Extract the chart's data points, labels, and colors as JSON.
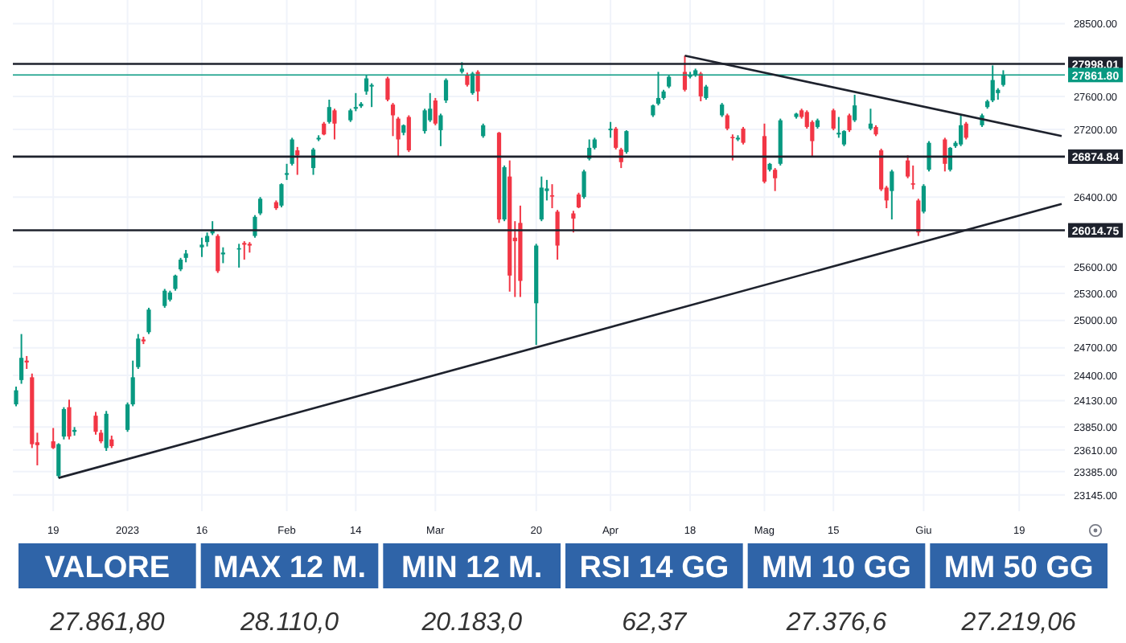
{
  "chart_data": [
    {
      "type": "candlestick",
      "x": [
        "2022-12-12",
        "2022-12-13",
        "2022-12-14",
        "2022-12-15",
        "2022-12-16",
        "2022-12-19",
        "2022-12-20",
        "2022-12-21",
        "2022-12-22",
        "2022-12-23",
        "2022-12-27",
        "2022-12-28",
        "2022-12-29",
        "2022-12-30",
        "2023-01-02",
        "2023-01-03",
        "2023-01-04",
        "2023-01-05",
        "2023-01-06",
        "2023-01-09",
        "2023-01-10",
        "2023-01-11",
        "2023-01-12",
        "2023-01-13",
        "2023-01-16",
        "2023-01-17",
        "2023-01-18",
        "2023-01-19",
        "2023-01-20",
        "2023-01-23",
        "2023-01-24",
        "2023-01-25",
        "2023-01-26",
        "2023-01-27",
        "2023-01-30",
        "2023-01-31",
        "2023-02-01",
        "2023-02-02",
        "2023-02-03",
        "2023-02-06",
        "2023-02-07",
        "2023-02-08",
        "2023-02-09",
        "2023-02-10",
        "2023-02-13",
        "2023-02-14",
        "2023-02-15",
        "2023-02-16",
        "2023-02-17",
        "2023-02-20",
        "2023-02-21",
        "2023-02-22",
        "2023-02-23",
        "2023-02-24",
        "2023-02-27",
        "2023-02-28",
        "2023-03-01",
        "2023-03-02",
        "2023-03-03",
        "2023-03-06",
        "2023-03-07",
        "2023-03-08",
        "2023-03-09",
        "2023-03-10",
        "2023-03-13",
        "2023-03-14",
        "2023-03-15",
        "2023-03-16",
        "2023-03-17",
        "2023-03-20",
        "2023-03-21",
        "2023-03-22",
        "2023-03-23",
        "2023-03-24",
        "2023-03-27",
        "2023-03-28",
        "2023-03-29",
        "2023-03-30",
        "2023-03-31",
        "2023-04-03",
        "2023-04-04",
        "2023-04-05",
        "2023-04-06",
        "2023-04-11",
        "2023-04-12",
        "2023-04-13",
        "2023-04-14",
        "2023-04-17",
        "2023-04-18",
        "2023-04-19",
        "2023-04-20",
        "2023-04-21",
        "2023-04-24",
        "2023-04-25",
        "2023-04-26",
        "2023-04-27",
        "2023-04-28",
        "2023-05-02",
        "2023-05-03",
        "2023-05-04",
        "2023-05-05",
        "2023-05-08",
        "2023-05-09",
        "2023-05-10",
        "2023-05-11",
        "2023-05-12",
        "2023-05-15",
        "2023-05-16",
        "2023-05-17",
        "2023-05-18",
        "2023-05-19",
        "2023-05-22",
        "2023-05-23",
        "2023-05-24",
        "2023-05-25",
        "2023-05-26",
        "2023-05-29",
        "2023-05-30",
        "2023-05-31",
        "2023-06-01",
        "2023-06-02",
        "2023-06-05",
        "2023-06-06",
        "2023-06-07",
        "2023-06-08",
        "2023-06-09",
        "2023-06-12",
        "2023-06-13",
        "2023-06-14",
        "2023-06-15",
        "2023-06-16"
      ],
      "ohlc": [
        [
          24090,
          24280,
          24070,
          24240
        ],
        [
          24350,
          24850,
          24310,
          24590
        ],
        [
          24560,
          24610,
          24470,
          24540
        ],
        [
          24380,
          24420,
          23630,
          23670
        ],
        [
          23690,
          23790,
          23450,
          23660
        ],
        [
          23700,
          23840,
          23620,
          23630
        ],
        [
          23340,
          23680,
          23320,
          23670
        ],
        [
          23750,
          24060,
          23720,
          24040
        ],
        [
          24060,
          24140,
          23720,
          23750
        ],
        [
          23800,
          23850,
          23760,
          23820
        ],
        [
          23970,
          24010,
          23770,
          23800
        ],
        [
          23790,
          23820,
          23680,
          23700
        ],
        [
          23630,
          24020,
          23600,
          23990
        ],
        [
          23720,
          23760,
          23630,
          23650
        ],
        [
          23820,
          24110,
          23800,
          24090
        ],
        [
          24090,
          24560,
          24070,
          24380
        ],
        [
          24490,
          24850,
          24470,
          24800
        ],
        [
          24790,
          24820,
          24740,
          24770
        ],
        [
          24870,
          25140,
          24850,
          25120
        ],
        [
          25160,
          25350,
          25140,
          25330
        ],
        [
          25230,
          25330,
          25210,
          25310
        ],
        [
          25350,
          25510,
          25330,
          25500
        ],
        [
          25570,
          25700,
          25550,
          25680
        ],
        [
          25700,
          25790,
          25650,
          25750
        ],
        [
          25820,
          25930,
          25710,
          25850
        ],
        [
          25880,
          25990,
          25830,
          25950
        ],
        [
          25980,
          26120,
          25960,
          26010
        ],
        [
          25950,
          25970,
          25530,
          25550
        ],
        [
          25740,
          25820,
          25640,
          25760
        ],
        [
          25800,
          25860,
          25590,
          25810
        ],
        [
          25870,
          25890,
          25680,
          25850
        ],
        [
          25860,
          25880,
          25760,
          25840
        ],
        [
          25950,
          26190,
          25930,
          26170
        ],
        [
          26210,
          26400,
          26190,
          26380
        ],
        [
          26340,
          26360,
          26250,
          26270
        ],
        [
          26300,
          26560,
          26280,
          26550
        ],
        [
          26660,
          26790,
          26600,
          26680
        ],
        [
          26790,
          27100,
          26770,
          27080
        ],
        [
          26950,
          26990,
          26660,
          26890
        ],
        [
          26740,
          26980,
          26660,
          26960
        ],
        [
          27080,
          27130,
          27060,
          27100
        ],
        [
          27270,
          27290,
          27130,
          27140
        ],
        [
          27290,
          27560,
          27270,
          27470
        ],
        [
          27430,
          27450,
          27080,
          27270
        ],
        [
          27310,
          27450,
          27290,
          27430
        ],
        [
          27450,
          27640,
          27420,
          27470
        ],
        [
          27480,
          27530,
          27460,
          27510
        ],
        [
          27660,
          27860,
          27620,
          27820
        ],
        [
          27720,
          27760,
          27470,
          27740
        ],
        [
          27820,
          27840,
          27540,
          27560
        ],
        [
          27500,
          27520,
          27120,
          27370
        ],
        [
          27330,
          27350,
          26870,
          27080
        ],
        [
          27160,
          27260,
          27130,
          27250
        ],
        [
          27350,
          27370,
          26930,
          26950
        ],
        [
          27180,
          27450,
          27150,
          27430
        ],
        [
          27310,
          27640,
          27290,
          27450
        ],
        [
          27550,
          27580,
          27250,
          27270
        ],
        [
          27190,
          27390,
          27000,
          27370
        ],
        [
          27550,
          27820,
          27520,
          27800
        ],
        [
          27900,
          28020,
          27880,
          27940
        ],
        [
          27860,
          27890,
          27720,
          27740
        ],
        [
          27640,
          27900,
          27620,
          27880
        ],
        [
          27900,
          27920,
          27540,
          27660
        ],
        [
          27120,
          27270,
          27100,
          27250
        ],
        [
          27160,
          27170,
          26100,
          26140
        ],
        [
          26140,
          26770,
          26120,
          26750
        ],
        [
          26640,
          26830,
          25320,
          25500
        ],
        [
          25930,
          26120,
          25260,
          25890
        ],
        [
          26100,
          26300,
          25260,
          25440
        ],
        [
          25190,
          25860,
          24730,
          25840
        ],
        [
          26140,
          26640,
          26120,
          26510
        ],
        [
          26470,
          26600,
          26360,
          26500
        ],
        [
          26420,
          26550,
          26270,
          26410
        ],
        [
          26230,
          26250,
          25680,
          25840
        ],
        [
          26210,
          26240,
          25990,
          26150
        ],
        [
          26430,
          26450,
          26270,
          26280
        ],
        [
          26400,
          26720,
          26380,
          26700
        ],
        [
          26850,
          27080,
          26830,
          26980
        ],
        [
          26980,
          27100,
          26960,
          27080
        ],
        [
          27190,
          27290,
          27100,
          27210
        ],
        [
          27210,
          27230,
          26960,
          26980
        ],
        [
          26960,
          26980,
          26740,
          26810
        ],
        [
          26930,
          27190,
          26910,
          27180
        ],
        [
          27370,
          27500,
          27350,
          27490
        ],
        [
          27510,
          27900,
          27490,
          27580
        ],
        [
          27580,
          27680,
          27560,
          27660
        ],
        [
          27720,
          27860,
          27700,
          27840
        ],
        [
          27900,
          28100,
          27660,
          27680
        ],
        [
          27840,
          27900,
          27820,
          27860
        ],
        [
          27860,
          27940,
          27840,
          27920
        ],
        [
          27880,
          27900,
          27540,
          27600
        ],
        [
          27580,
          27740,
          27560,
          27720
        ],
        [
          27370,
          27520,
          27350,
          27500
        ],
        [
          27370,
          27390,
          27190,
          27210
        ],
        [
          27110,
          27140,
          26830,
          27100
        ],
        [
          27080,
          27130,
          27060,
          27100
        ],
        [
          27210,
          27230,
          27020,
          27040
        ],
        [
          27120,
          27270,
          26560,
          26580
        ],
        [
          26720,
          26800,
          26700,
          26790
        ],
        [
          26720,
          26740,
          26470,
          26620
        ],
        [
          26790,
          27330,
          26770,
          27310
        ],
        [
          27350,
          27400,
          27330,
          27390
        ],
        [
          27430,
          27450,
          27330,
          27350
        ],
        [
          27410,
          27430,
          27210,
          27230
        ],
        [
          27290,
          27310,
          26870,
          27060
        ],
        [
          27230,
          27330,
          27210,
          27310
        ],
        [
          27430,
          27450,
          27190,
          27210
        ],
        [
          27140,
          27350,
          27100,
          27160
        ],
        [
          27020,
          27190,
          27000,
          27180
        ],
        [
          27370,
          27390,
          27170,
          27190
        ],
        [
          27310,
          27620,
          27290,
          27490
        ],
        [
          27210,
          27450,
          27190,
          27270
        ],
        [
          27230,
          27250,
          27120,
          27140
        ],
        [
          26950,
          26970,
          26470,
          26490
        ],
        [
          26510,
          26530,
          26270,
          26360
        ],
        [
          26470,
          26720,
          26140,
          26700
        ],
        [
          26830,
          26890,
          26620,
          26640
        ],
        [
          26560,
          26770,
          26490,
          26550
        ],
        [
          26360,
          26380,
          25950,
          25990
        ],
        [
          26230,
          26550,
          26210,
          26530
        ],
        [
          26720,
          27060,
          26700,
          27040
        ],
        [
          27080,
          27100,
          26700,
          26790
        ],
        [
          26720,
          26990,
          26700,
          26980
        ],
        [
          27000,
          27060,
          26980,
          27040
        ],
        [
          27020,
          27370,
          27000,
          27250
        ],
        [
          27270,
          27290,
          27080,
          27100
        ],
        [
          27250,
          27390,
          27230,
          27370
        ],
        [
          27470,
          27560,
          27450,
          27540
        ],
        [
          27550,
          27980,
          27530,
          27800
        ],
        [
          27640,
          27700,
          27560,
          27680
        ],
        [
          27740,
          27920,
          27720,
          27860
        ]
      ],
      "series": [
        {
          "type": "line",
          "x": [
            "2022-12-20",
            "2023-06-27"
          ],
          "values": [
            23320,
            26320
          ],
          "color": "#1e222d"
        },
        {
          "type": "line",
          "x": [
            "2023-04-17",
            "2023-06-27"
          ],
          "values": [
            28100,
            27120
          ],
          "color": "#1e222d"
        }
      ],
      "xlim": [
        "2022-12-12",
        "2023-06-27"
      ],
      "xticks": [
        {
          "value": "2022-12-19",
          "label": "19"
        },
        {
          "value": "2023-01-02",
          "label": "2023"
        },
        {
          "value": "2023-01-16",
          "label": "16"
        },
        {
          "value": "2023-02-01",
          "label": "Feb"
        },
        {
          "value": "2023-02-14",
          "label": "14"
        },
        {
          "value": "2023-03-01",
          "label": "Mar"
        },
        {
          "value": "2023-03-20",
          "label": "20"
        },
        {
          "value": "2023-04-03",
          "label": "Apr"
        },
        {
          "value": "2023-04-18",
          "label": "18"
        },
        {
          "value": "2023-05-02",
          "label": "Mag"
        },
        {
          "value": "2023-05-15",
          "label": "15"
        },
        {
          "value": "2023-06-01",
          "label": "Giu"
        },
        {
          "value": "2023-06-19",
          "label": "19"
        }
      ],
      "ylim": [
        22980,
        28800
      ],
      "log": true,
      "yticks": [
        {
          "value": 28500,
          "label": "28500.00"
        },
        {
          "value": 27600,
          "label": "27600.00"
        },
        {
          "value": 27200,
          "label": "27200.00"
        },
        {
          "value": 26400,
          "label": "26400.00"
        },
        {
          "value": 25600,
          "label": "25600.00"
        },
        {
          "value": 25300,
          "label": "25300.00"
        },
        {
          "value": 25000,
          "label": "25000.00"
        },
        {
          "value": 24700,
          "label": "24700.00"
        },
        {
          "value": 24400,
          "label": "24400.00"
        },
        {
          "value": 24130,
          "label": "24130.00"
        },
        {
          "value": 23850,
          "label": "23850.00"
        },
        {
          "value": 23610,
          "label": "23610.00"
        },
        {
          "value": 23385,
          "label": "23385.00"
        },
        {
          "value": 23145,
          "label": "23145.00"
        }
      ],
      "ref_lines": [
        {
          "axis": "y",
          "value": 27998.01,
          "label": "27998.01",
          "color": "#1e222d"
        },
        {
          "axis": "y",
          "value": 27861.8,
          "label": "27861.80",
          "color": "#089981"
        },
        {
          "axis": "y",
          "value": 26874.84,
          "label": "26874.84",
          "color": "#1e222d"
        },
        {
          "axis": "y",
          "value": 26014.75,
          "label": "26014.75",
          "color": "#1e222d"
        }
      ],
      "grid": true
    },
    {
      "type": "other",
      "categories": [
        "VALORE",
        "MAX 12 M.",
        "MIN 12 M.",
        "RSI 14 GG",
        "MM 10 GG",
        "MM 50 GG"
      ],
      "value_labels": [
        "27.861,80",
        "28.110,0",
        "20.183,0",
        "62,37",
        "27.376,6",
        "27.219,06"
      ],
      "color": "#2f64a8"
    }
  ]
}
